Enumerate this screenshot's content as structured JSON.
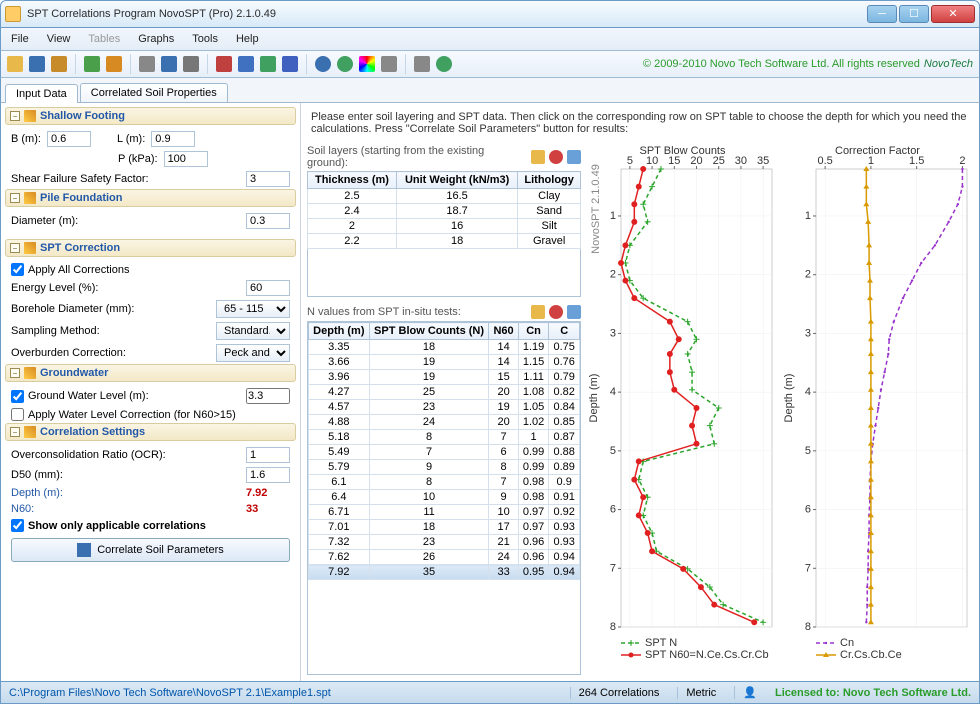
{
  "window": {
    "title": "SPT Correlations Program NovoSPT (Pro) 2.1.0.49"
  },
  "menu": [
    "File",
    "View",
    "Tables",
    "Graphs",
    "Tools",
    "Help"
  ],
  "menu_disabled_index": 2,
  "copyright": "© 2009-2010 Novo Tech Software Ltd. All rights reserved",
  "logo_text": "NovoTech",
  "tabs": {
    "active": "Input Data",
    "other": "Correlated Soil Properties"
  },
  "instructions": "Please enter soil layering and SPT data. Then click on the corresponding row on SPT table to choose the depth for which you need the calculations. Press \"Correlate Soil Parameters\" button for results:",
  "shallow": {
    "title": "Shallow Footing",
    "B_label": "B (m):",
    "B": "0.6",
    "L_label": "L (m):",
    "L": "0.9",
    "P_label": "P (kPa):",
    "P": "100",
    "sfs_label": "Shear Failure Safety Factor:",
    "sfs": "3"
  },
  "pile": {
    "title": "Pile Foundation",
    "diam_label": "Diameter (m):",
    "diam": "0.3"
  },
  "spt_corr": {
    "title": "SPT Correction",
    "apply_all": "Apply All Corrections",
    "apply_all_checked": true,
    "energy_label": "Energy Level (%):",
    "energy": "60",
    "bore_label": "Borehole Diameter (mm):",
    "bore": "65 - 115",
    "sampling_label": "Sampling Method:",
    "sampling": "Standard...",
    "overburden_label": "Overburden Correction:",
    "overburden": "Peck and..."
  },
  "gw": {
    "title": "Groundwater",
    "level_label": "Ground Water Level (m):",
    "level": "3.3",
    "level_checked": true,
    "apply_label": "Apply Water Level Correction (for N60>15)",
    "apply_checked": false
  },
  "corr_set": {
    "title": "Correlation Settings",
    "ocr_label": "Overconsolidation Ratio (OCR):",
    "ocr": "1",
    "d50_label": "D50 (mm):",
    "d50": "1.6",
    "depth_label": "Depth (m):",
    "depth": "7.92",
    "n60_label": "N60:",
    "n60": "33",
    "show_only": "Show only applicable correlations",
    "show_only_checked": true,
    "button": "Correlate Soil Parameters"
  },
  "soil_layers": {
    "label": "Soil layers (starting from the existing ground):",
    "headers": [
      "Thickness (m)",
      "Unit Weight (kN/m3)",
      "Lithology"
    ],
    "rows": [
      [
        "2.5",
        "16.5",
        "Clay"
      ],
      [
        "2.4",
        "18.7",
        "Sand"
      ],
      [
        "2",
        "16",
        "Silt"
      ],
      [
        "2.2",
        "18",
        "Gravel"
      ]
    ]
  },
  "n_values": {
    "label": "N values from SPT in-situ tests:",
    "headers": [
      "Depth (m)",
      "SPT Blow Counts (N)",
      "N60",
      "Cn",
      "C"
    ],
    "rows": [
      [
        "3.35",
        "18",
        "14",
        "1.19",
        "0.75"
      ],
      [
        "3.66",
        "19",
        "14",
        "1.15",
        "0.76"
      ],
      [
        "3.96",
        "19",
        "15",
        "1.11",
        "0.79"
      ],
      [
        "4.27",
        "25",
        "20",
        "1.08",
        "0.82"
      ],
      [
        "4.57",
        "23",
        "19",
        "1.05",
        "0.84"
      ],
      [
        "4.88",
        "24",
        "20",
        "1.02",
        "0.85"
      ],
      [
        "5.18",
        "8",
        "7",
        "1",
        "0.87"
      ],
      [
        "5.49",
        "7",
        "6",
        "0.99",
        "0.88"
      ],
      [
        "5.79",
        "9",
        "8",
        "0.99",
        "0.89"
      ],
      [
        "6.1",
        "8",
        "7",
        "0.98",
        "0.9"
      ],
      [
        "6.4",
        "10",
        "9",
        "0.98",
        "0.91"
      ],
      [
        "6.71",
        "11",
        "10",
        "0.97",
        "0.92"
      ],
      [
        "7.01",
        "18",
        "17",
        "0.97",
        "0.93"
      ],
      [
        "7.32",
        "23",
        "21",
        "0.96",
        "0.93"
      ],
      [
        "7.62",
        "26",
        "24",
        "0.96",
        "0.94"
      ],
      [
        "7.92",
        "35",
        "33",
        "0.95",
        "0.94"
      ]
    ],
    "selected_row": 15
  },
  "chart1": {
    "title": "SPT Blow Counts",
    "xlabel_rotated": "NovoSPT 2.1.0.49",
    "ylabel": "Depth (m)",
    "xticks": [
      5,
      10,
      15,
      20,
      25,
      30,
      35
    ],
    "yticks": [
      1,
      2,
      3,
      4,
      5,
      6,
      7,
      8
    ],
    "series": [
      {
        "name": "SPT N",
        "color": "#2aa52a",
        "dash": true,
        "marker": "+",
        "points": [
          [
            12,
            0.2
          ],
          [
            10,
            0.5
          ],
          [
            8,
            0.8
          ],
          [
            9,
            1.1
          ],
          [
            5,
            1.5
          ],
          [
            4,
            1.8
          ],
          [
            5,
            2.1
          ],
          [
            8,
            2.4
          ],
          [
            18,
            2.8
          ],
          [
            20,
            3.1
          ],
          [
            18,
            3.35
          ],
          [
            19,
            3.66
          ],
          [
            19,
            3.96
          ],
          [
            25,
            4.27
          ],
          [
            23,
            4.57
          ],
          [
            24,
            4.88
          ],
          [
            8,
            5.18
          ],
          [
            7,
            5.49
          ],
          [
            9,
            5.79
          ],
          [
            8,
            6.1
          ],
          [
            10,
            6.4
          ],
          [
            11,
            6.71
          ],
          [
            18,
            7.01
          ],
          [
            23,
            7.32
          ],
          [
            26,
            7.62
          ],
          [
            35,
            7.92
          ]
        ]
      },
      {
        "name": "SPT N60=N.Ce.Cs.Cr.Cb",
        "color": "#e02020",
        "dash": false,
        "marker": "o",
        "points": [
          [
            8,
            0.2
          ],
          [
            7,
            0.5
          ],
          [
            6,
            0.8
          ],
          [
            6,
            1.1
          ],
          [
            4,
            1.5
          ],
          [
            3,
            1.8
          ],
          [
            4,
            2.1
          ],
          [
            6,
            2.4
          ],
          [
            14,
            2.8
          ],
          [
            16,
            3.1
          ],
          [
            14,
            3.35
          ],
          [
            14,
            3.66
          ],
          [
            15,
            3.96
          ],
          [
            20,
            4.27
          ],
          [
            19,
            4.57
          ],
          [
            20,
            4.88
          ],
          [
            7,
            5.18
          ],
          [
            6,
            5.49
          ],
          [
            8,
            5.79
          ],
          [
            7,
            6.1
          ],
          [
            9,
            6.4
          ],
          [
            10,
            6.71
          ],
          [
            17,
            7.01
          ],
          [
            21,
            7.32
          ],
          [
            24,
            7.62
          ],
          [
            33,
            7.92
          ]
        ]
      }
    ],
    "legend": [
      {
        "label": "SPT N",
        "color": "#2aa52a",
        "dash": true,
        "marker": "+"
      },
      {
        "label": "SPT N60=N.Ce.Cs.Cr.Cb",
        "color": "#e02020",
        "dash": false,
        "marker": "o"
      }
    ]
  },
  "chart2": {
    "title": "Correction Factor",
    "ylabel": "Depth (m)",
    "xticks": [
      0.5,
      1,
      1.5,
      2
    ],
    "yticks": [
      1,
      2,
      3,
      4,
      5,
      6,
      7,
      8
    ],
    "series": [
      {
        "name": "Cn",
        "color": "#9933cc",
        "dash": true,
        "marker": ".",
        "points": [
          [
            2.0,
            0.2
          ],
          [
            2.0,
            0.5
          ],
          [
            1.95,
            0.8
          ],
          [
            1.85,
            1.1
          ],
          [
            1.7,
            1.5
          ],
          [
            1.55,
            1.8
          ],
          [
            1.45,
            2.1
          ],
          [
            1.35,
            2.4
          ],
          [
            1.25,
            2.8
          ],
          [
            1.2,
            3.1
          ],
          [
            1.19,
            3.35
          ],
          [
            1.15,
            3.66
          ],
          [
            1.11,
            3.96
          ],
          [
            1.08,
            4.27
          ],
          [
            1.05,
            4.57
          ],
          [
            1.02,
            4.88
          ],
          [
            1.0,
            5.18
          ],
          [
            0.99,
            5.49
          ],
          [
            0.99,
            5.79
          ],
          [
            0.98,
            6.1
          ],
          [
            0.98,
            6.4
          ],
          [
            0.97,
            6.71
          ],
          [
            0.97,
            7.01
          ],
          [
            0.96,
            7.32
          ],
          [
            0.96,
            7.62
          ],
          [
            0.95,
            7.92
          ]
        ]
      },
      {
        "name": "Cr.Cs.Cb.Ce",
        "color": "#d89a00",
        "dash": false,
        "marker": "^",
        "points": [
          [
            0.95,
            0.2
          ],
          [
            0.95,
            0.5
          ],
          [
            0.95,
            0.8
          ],
          [
            0.97,
            1.1
          ],
          [
            0.98,
            1.5
          ],
          [
            0.98,
            1.8
          ],
          [
            0.99,
            2.1
          ],
          [
            0.99,
            2.4
          ],
          [
            1.0,
            2.8
          ],
          [
            1.0,
            3.1
          ],
          [
            1.0,
            3.35
          ],
          [
            1.0,
            3.66
          ],
          [
            1.0,
            3.96
          ],
          [
            1.0,
            4.27
          ],
          [
            1.0,
            4.57
          ],
          [
            1.0,
            4.88
          ],
          [
            1.0,
            5.18
          ],
          [
            1.0,
            5.49
          ],
          [
            1.0,
            5.79
          ],
          [
            1.0,
            6.1
          ],
          [
            1.0,
            6.4
          ],
          [
            1.0,
            6.71
          ],
          [
            1.0,
            7.01
          ],
          [
            1.0,
            7.32
          ],
          [
            1.0,
            7.62
          ],
          [
            1.0,
            7.92
          ]
        ]
      }
    ],
    "legend": [
      {
        "label": "Cn",
        "color": "#9933cc",
        "dash": true,
        "marker": "."
      },
      {
        "label": "Cr.Cs.Cb.Ce",
        "color": "#d89a00",
        "dash": false,
        "marker": "^"
      }
    ]
  },
  "status": {
    "path": "C:\\Program Files\\Novo Tech Software\\NovoSPT 2.1\\Example1.spt",
    "correlations": "264 Correlations",
    "units": "Metric",
    "license": "Licensed to: Novo Tech Software Ltd."
  },
  "toolbar_icons": [
    {
      "name": "open-icon",
      "color": "#e8b84a"
    },
    {
      "name": "save-icon",
      "color": "#3a6fb0"
    },
    {
      "name": "wand-icon",
      "color": "#c78b2a"
    },
    {
      "name": "export-icon",
      "color": "#4aa04a"
    },
    {
      "name": "edit-icon",
      "color": "#d88a22"
    },
    {
      "name": "filter-icon",
      "color": "#888888"
    },
    {
      "name": "table-icon",
      "color": "#3a6fb0"
    },
    {
      "name": "link-icon",
      "color": "#777777"
    },
    {
      "name": "chart1-icon",
      "color": "#c04040"
    },
    {
      "name": "chart2-icon",
      "color": "#4070c0"
    },
    {
      "name": "chart3-icon",
      "color": "#40a060"
    },
    {
      "name": "bug-icon",
      "color": "#4060c0"
    },
    {
      "name": "target-icon",
      "color": "#3a6fb0"
    },
    {
      "name": "globe-icon",
      "color": "#40a060"
    },
    {
      "name": "color-icon",
      "color": "linear"
    },
    {
      "name": "gear-icon",
      "color": "#888888"
    },
    {
      "name": "print-icon",
      "color": "#888888"
    },
    {
      "name": "help-icon",
      "color": "#40a060"
    }
  ]
}
